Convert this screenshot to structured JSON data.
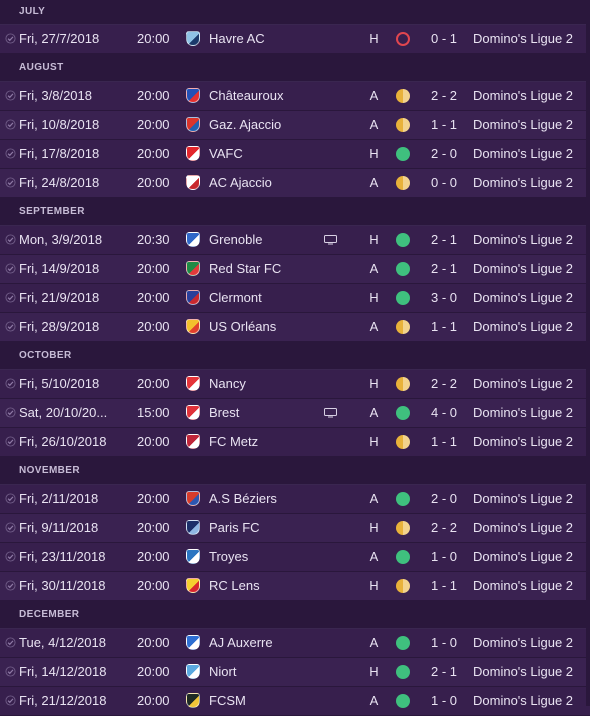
{
  "colors": {
    "background": "#2d1a40",
    "row": "#371f4d",
    "header": "#2a173c",
    "win": "#3fc07e",
    "draw": "#e8b23a",
    "loss": "#e0464f"
  },
  "months": [
    {
      "name": "JULY",
      "fixtures": [
        {
          "date": "Fri, 27/7/2018",
          "time": "20:00",
          "opponent": "Havre AC",
          "crest_colors": [
            "#8fc3e6",
            "#1b3a6b"
          ],
          "tv": false,
          "venue": "H",
          "result": "loss",
          "score": "0 - 1",
          "competition": "Domino's Ligue 2"
        }
      ]
    },
    {
      "name": "AUGUST",
      "fixtures": [
        {
          "date": "Fri, 3/8/2018",
          "time": "20:00",
          "opponent": "Châteauroux",
          "crest_colors": [
            "#2350b5",
            "#e33030"
          ],
          "tv": false,
          "venue": "A",
          "result": "draw",
          "score": "2 - 2",
          "competition": "Domino's Ligue 2"
        },
        {
          "date": "Fri, 10/8/2018",
          "time": "20:00",
          "opponent": "Gaz. Ajaccio",
          "crest_colors": [
            "#d9342b",
            "#1f5fb0"
          ],
          "tv": false,
          "venue": "A",
          "result": "draw",
          "score": "1 - 1",
          "competition": "Domino's Ligue 2"
        },
        {
          "date": "Fri, 17/8/2018",
          "time": "20:00",
          "opponent": "VAFC",
          "crest_colors": [
            "#e3262d",
            "#ffffff"
          ],
          "tv": false,
          "venue": "H",
          "result": "win",
          "score": "2 - 0",
          "competition": "Domino's Ligue 2"
        },
        {
          "date": "Fri, 24/8/2018",
          "time": "20:00",
          "opponent": "AC Ajaccio",
          "crest_colors": [
            "#ffffff",
            "#c8282c"
          ],
          "tv": false,
          "venue": "A",
          "result": "draw",
          "score": "0 - 0",
          "competition": "Domino's Ligue 2"
        }
      ]
    },
    {
      "name": "SEPTEMBER",
      "fixtures": [
        {
          "date": "Mon, 3/9/2018",
          "time": "20:30",
          "opponent": "Grenoble",
          "crest_colors": [
            "#2f67c8",
            "#ffffff"
          ],
          "tv": true,
          "venue": "H",
          "result": "win",
          "score": "2 - 1",
          "competition": "Domino's Ligue 2"
        },
        {
          "date": "Fri, 14/9/2018",
          "time": "20:00",
          "opponent": "Red Star FC",
          "crest_colors": [
            "#1f8a45",
            "#e23a3a"
          ],
          "tv": false,
          "venue": "A",
          "result": "win",
          "score": "2 - 1",
          "competition": "Domino's Ligue 2"
        },
        {
          "date": "Fri, 21/9/2018",
          "time": "20:00",
          "opponent": "Clermont",
          "crest_colors": [
            "#2a3f9a",
            "#c9282f"
          ],
          "tv": false,
          "venue": "H",
          "result": "win",
          "score": "3 - 0",
          "competition": "Domino's Ligue 2"
        },
        {
          "date": "Fri, 28/9/2018",
          "time": "20:00",
          "opponent": "US Orléans",
          "crest_colors": [
            "#f3c12c",
            "#e2402b"
          ],
          "tv": false,
          "venue": "A",
          "result": "draw",
          "score": "1 - 1",
          "competition": "Domino's Ligue 2"
        }
      ]
    },
    {
      "name": "OCTOBER",
      "fixtures": [
        {
          "date": "Fri, 5/10/2018",
          "time": "20:00",
          "opponent": "Nancy",
          "crest_colors": [
            "#e5343a",
            "#ffffff"
          ],
          "tv": false,
          "venue": "H",
          "result": "draw",
          "score": "2 - 2",
          "competition": "Domino's Ligue 2"
        },
        {
          "date": "Sat, 20/10/20...",
          "time": "15:00",
          "opponent": "Brest",
          "crest_colors": [
            "#e0323a",
            "#ffffff"
          ],
          "tv": true,
          "venue": "A",
          "result": "win",
          "score": "4 - 0",
          "competition": "Domino's Ligue 2"
        },
        {
          "date": "Fri, 26/10/2018",
          "time": "20:00",
          "opponent": "FC Metz",
          "crest_colors": [
            "#c0263a",
            "#ffffff"
          ],
          "tv": false,
          "venue": "H",
          "result": "draw",
          "score": "1 - 1",
          "competition": "Domino's Ligue 2"
        }
      ]
    },
    {
      "name": "NOVEMBER",
      "fixtures": [
        {
          "date": "Fri, 2/11/2018",
          "time": "20:00",
          "opponent": "A.S Béziers",
          "crest_colors": [
            "#d63c2c",
            "#2c56b0"
          ],
          "tv": false,
          "venue": "A",
          "result": "win",
          "score": "2 - 0",
          "competition": "Domino's Ligue 2"
        },
        {
          "date": "Fri, 9/11/2018",
          "time": "20:00",
          "opponent": "Paris FC",
          "crest_colors": [
            "#1c2f6a",
            "#8fb7e3"
          ],
          "tv": false,
          "venue": "H",
          "result": "draw",
          "score": "2 - 2",
          "competition": "Domino's Ligue 2"
        },
        {
          "date": "Fri, 23/11/2018",
          "time": "20:00",
          "opponent": "Troyes",
          "crest_colors": [
            "#2a75c2",
            "#ffffff"
          ],
          "tv": false,
          "venue": "A",
          "result": "win",
          "score": "1 - 0",
          "competition": "Domino's Ligue 2"
        },
        {
          "date": "Fri, 30/11/2018",
          "time": "20:00",
          "opponent": "RC Lens",
          "crest_colors": [
            "#f5cf2e",
            "#d9262c"
          ],
          "tv": false,
          "venue": "H",
          "result": "draw",
          "score": "1 - 1",
          "competition": "Domino's Ligue 2"
        }
      ]
    },
    {
      "name": "DECEMBER",
      "fixtures": [
        {
          "date": "Tue, 4/12/2018",
          "time": "20:00",
          "opponent": "AJ Auxerre",
          "crest_colors": [
            "#2e6fd2",
            "#ffffff"
          ],
          "tv": false,
          "venue": "A",
          "result": "win",
          "score": "1 - 0",
          "competition": "Domino's Ligue 2"
        },
        {
          "date": "Fri, 14/12/2018",
          "time": "20:00",
          "opponent": "Niort",
          "crest_colors": [
            "#5aa9e0",
            "#ffffff"
          ],
          "tv": false,
          "venue": "H",
          "result": "win",
          "score": "2 - 1",
          "competition": "Domino's Ligue 2"
        },
        {
          "date": "Fri, 21/12/2018",
          "time": "20:00",
          "opponent": "FCSM",
          "crest_colors": [
            "#1f2a24",
            "#f2c538"
          ],
          "tv": false,
          "venue": "A",
          "result": "win",
          "score": "1 - 0",
          "competition": "Domino's Ligue 2"
        }
      ]
    }
  ]
}
